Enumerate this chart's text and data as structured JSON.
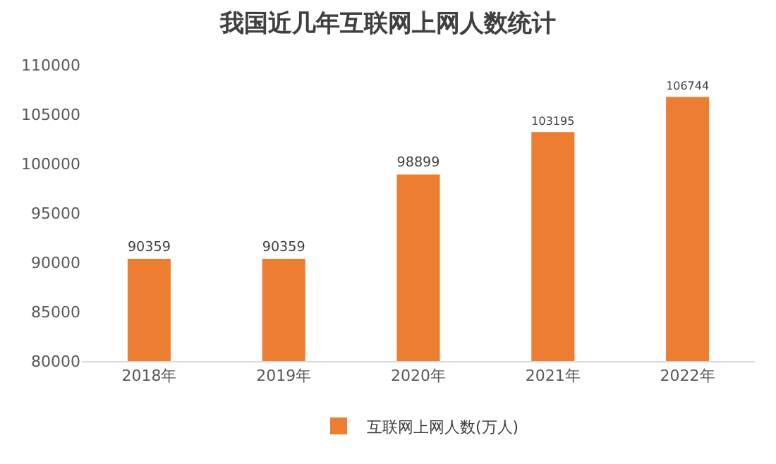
{
  "chart_data": {
    "type": "bar",
    "title": "我国近几年互联网上网人数统计",
    "categories": [
      "2018年",
      "2019年",
      "2020年",
      "2021年",
      "2022年"
    ],
    "series": [
      {
        "name": "互联网上网人数(万人)",
        "color": "#ed7d31",
        "values": [
          90359,
          90359,
          98899,
          103195,
          106744
        ]
      }
    ],
    "ylim": [
      80000,
      110000
    ],
    "yticks": [
      80000,
      85000,
      90000,
      95000,
      100000,
      105000,
      110000
    ],
    "data_labels": true,
    "legend": "bottom",
    "grid": false
  }
}
